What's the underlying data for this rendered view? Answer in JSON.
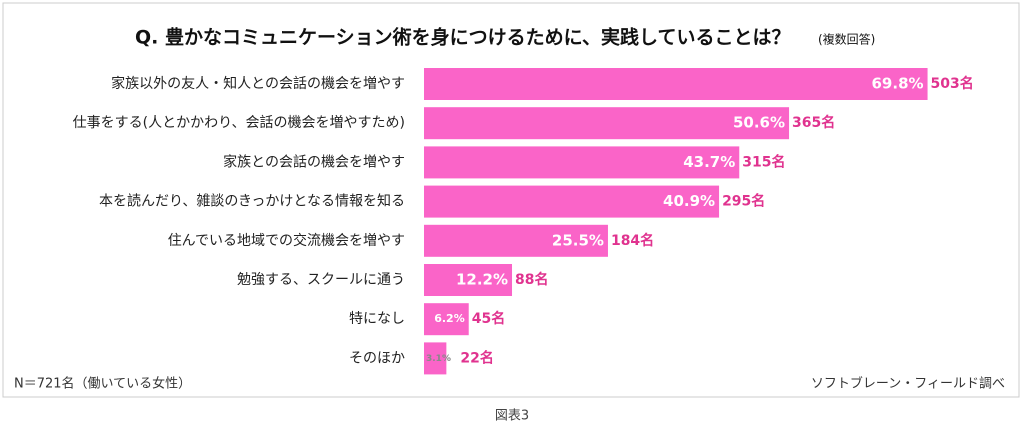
{
  "chart_data": {
    "type": "hbar",
    "title": "Q.  豊かなコミュニケーション術を身につけるために、実践していることは？",
    "subtitle": "(複数回答)",
    "categories": [
      "家族以外の友人・知人との会話の機会を増やす",
      "仕事をする(人とかかわり、会話の機会を増やすため)",
      "家族との会話の機会を増やす",
      "本を読んだり、雑談のきっかけとなる情報を知る",
      "住んでいる地域での交流機会を増やす",
      "勉強する、スクールに通う",
      "特になし",
      "そのほか"
    ],
    "values": [
      69.8,
      50.6,
      43.7,
      40.9,
      25.5,
      12.2,
      6.2,
      3.1
    ],
    "value_labels": [
      "69.8%",
      "50.6%",
      "43.7%",
      "40.9%",
      "25.5%",
      "12.2%",
      "6.2%",
      "3.1%"
    ],
    "count_labels": [
      "503名",
      "365名",
      "315名",
      "295名",
      "184名",
      "88名",
      "45名",
      "22名"
    ],
    "color": "#fa64c8",
    "xlim": [
      0,
      70
    ],
    "note": "N＝721名（働いている女性）",
    "source": "ソフトブレーン・フィールド調べ",
    "caption": "図表3"
  }
}
